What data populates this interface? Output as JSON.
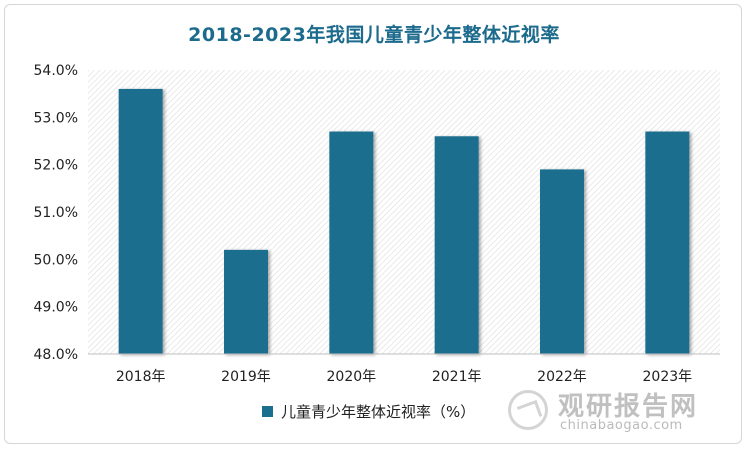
{
  "chart_data": {
    "type": "bar",
    "title": "2018-2023年我国儿童青少年整体近视率",
    "categories": [
      "2018年",
      "2019年",
      "2020年",
      "2021年",
      "2022年",
      "2023年"
    ],
    "series": [
      {
        "name": "儿童青少年整体近视率（%）",
        "values": [
          53.6,
          50.2,
          52.7,
          52.6,
          51.9,
          52.7
        ]
      }
    ],
    "ylim": [
      48.0,
      54.0
    ],
    "yticks": [
      "48.0%",
      "49.0%",
      "50.0%",
      "51.0%",
      "52.0%",
      "53.0%",
      "54.0%"
    ],
    "xlabel": "",
    "ylabel": "",
    "legend": "bottom",
    "grid": false,
    "colors": {
      "bar": "#1a6e8e",
      "title": "#1c6a8c"
    }
  },
  "watermark": {
    "brand": "观研报告网",
    "url": "chinabaogao.com"
  }
}
